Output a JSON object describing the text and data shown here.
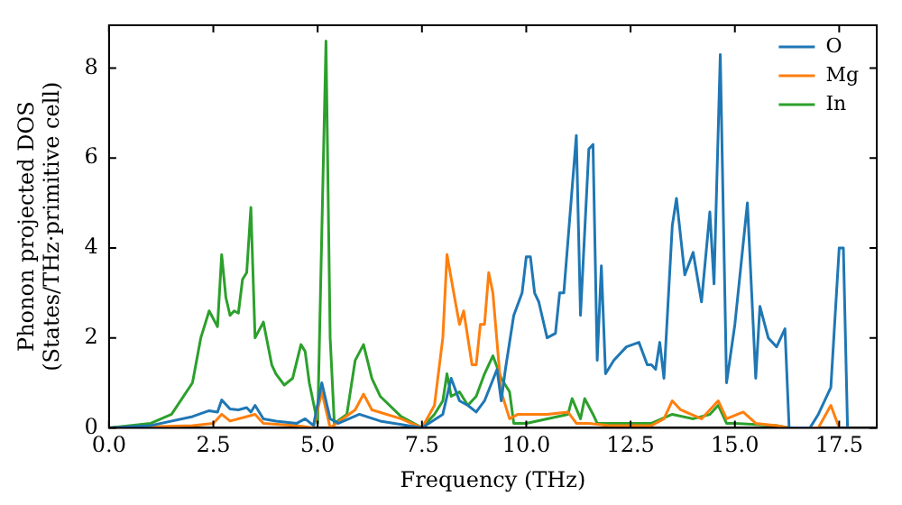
{
  "chart_data": {
    "type": "line",
    "xlabel": "Frequency (THz)",
    "ylabel": "Phonon projected DOS\n(States/THz·primitive cell)",
    "xlim": [
      0,
      18.4
    ],
    "ylim": [
      0,
      8.95
    ],
    "xticks": [
      {
        "value": 0,
        "label": "0.0"
      },
      2.5,
      {
        "value": 5,
        "label": "5.0"
      },
      7.5,
      {
        "value": 10,
        "label": "10.0"
      },
      12.5,
      {
        "value": 15,
        "label": "15.0"
      },
      17.5
    ],
    "yticks": [
      0,
      2,
      4,
      6,
      8
    ],
    "grid": false,
    "legend": "top right",
    "marker": "none",
    "line_style": "solid",
    "series": [
      {
        "name": "O",
        "color": "#1f77b4",
        "x": [
          0,
          1.0,
          2.0,
          2.4,
          2.6,
          2.7,
          2.9,
          3.1,
          3.3,
          3.4,
          3.5,
          3.7,
          4.0,
          4.5,
          4.7,
          4.9,
          5.1,
          5.3,
          5.5,
          6.0,
          6.5,
          7.5,
          8.0,
          8.2,
          8.4,
          8.6,
          8.8,
          9.0,
          9.3,
          9.4,
          9.5,
          9.7,
          9.9,
          10.0,
          10.1,
          10.2,
          10.3,
          10.5,
          10.7,
          10.8,
          10.9,
          11.2,
          11.3,
          11.5,
          11.6,
          11.7,
          11.8,
          11.9,
          12.1,
          12.4,
          12.7,
          12.9,
          13.0,
          13.1,
          13.2,
          13.3,
          13.5,
          13.6,
          13.8,
          14.0,
          14.2,
          14.4,
          14.5,
          14.65,
          14.8,
          15.0,
          15.3,
          15.5,
          15.6,
          15.8,
          16.0,
          16.2,
          16.3,
          16.8,
          17.0,
          17.3,
          17.5,
          17.6,
          17.7
        ],
        "values": [
          0,
          0.05,
          0.25,
          0.38,
          0.35,
          0.62,
          0.42,
          0.4,
          0.45,
          0.35,
          0.5,
          0.2,
          0.15,
          0.1,
          0.2,
          0.05,
          1.0,
          0.2,
          0.1,
          0.3,
          0.15,
          0,
          0.3,
          1.1,
          0.6,
          0.5,
          0.35,
          0.6,
          1.3,
          0.6,
          1.3,
          2.5,
          3.0,
          3.8,
          3.8,
          3.0,
          2.8,
          2.0,
          2.1,
          3.0,
          3.0,
          6.5,
          2.5,
          6.2,
          6.3,
          1.5,
          3.6,
          1.2,
          1.5,
          1.8,
          1.9,
          1.4,
          1.4,
          1.3,
          1.9,
          1.1,
          4.5,
          5.1,
          3.4,
          3.9,
          2.8,
          4.8,
          3.2,
          8.3,
          1.0,
          2.3,
          5.0,
          1.1,
          2.7,
          2.0,
          1.8,
          2.2,
          0,
          0,
          0.3,
          0.9,
          4.0,
          4.0,
          0
        ]
      },
      {
        "name": "Mg",
        "color": "#ff7f0e",
        "x": [
          0,
          2.0,
          2.5,
          2.7,
          2.9,
          3.3,
          3.5,
          3.7,
          4.5,
          4.9,
          5.1,
          5.3,
          5.6,
          5.9,
          6.1,
          6.3,
          7.0,
          7.5,
          7.8,
          8.0,
          8.1,
          8.3,
          8.4,
          8.5,
          8.7,
          8.8,
          8.9,
          9.0,
          9.1,
          9.2,
          9.4,
          9.6,
          9.8,
          10.0,
          10.5,
          11.0,
          11.2,
          11.5,
          12.0,
          13.0,
          13.3,
          13.5,
          13.7,
          14.2,
          14.6,
          14.8,
          15.2,
          15.5,
          16.0,
          16.3,
          17.0,
          17.3,
          17.5
        ],
        "values": [
          0,
          0.05,
          0.1,
          0.3,
          0.15,
          0.25,
          0.3,
          0.1,
          0.05,
          0,
          0.8,
          0,
          0.2,
          0.4,
          0.75,
          0.4,
          0.2,
          0,
          0.5,
          2.0,
          3.85,
          2.8,
          2.3,
          2.6,
          1.4,
          1.4,
          2.3,
          2.3,
          3.45,
          3.0,
          0.8,
          0.2,
          0.3,
          0.3,
          0.3,
          0.35,
          0.1,
          0.1,
          0.05,
          0.05,
          0.2,
          0.6,
          0.4,
          0.2,
          0.6,
          0.2,
          0.35,
          0.1,
          0.05,
          0,
          0,
          0.5,
          0
        ]
      },
      {
        "name": "In",
        "color": "#2ca02c",
        "x": [
          0,
          1.0,
          1.5,
          2.0,
          2.2,
          2.4,
          2.6,
          2.7,
          2.8,
          2.9,
          3.0,
          3.1,
          3.2,
          3.3,
          3.4,
          3.5,
          3.7,
          3.9,
          4.0,
          4.2,
          4.4,
          4.6,
          4.7,
          4.8,
          5.0,
          5.2,
          5.3,
          5.4,
          5.7,
          5.9,
          6.1,
          6.3,
          6.5,
          7.0,
          7.5,
          7.8,
          8.0,
          8.1,
          8.2,
          8.4,
          8.6,
          8.8,
          9.0,
          9.2,
          9.4,
          9.6,
          9.7,
          10.0,
          11.0,
          11.1,
          11.3,
          11.4,
          11.6,
          11.7,
          12.0,
          13.0,
          13.5,
          14.0,
          14.4,
          14.6,
          14.8,
          15.0,
          16.0,
          16.3
        ],
        "values": [
          0,
          0.1,
          0.3,
          1.0,
          2.0,
          2.6,
          2.25,
          3.85,
          2.9,
          2.5,
          2.6,
          2.55,
          3.3,
          3.45,
          4.9,
          2.0,
          2.35,
          1.4,
          1.2,
          0.95,
          1.1,
          1.85,
          1.7,
          1.0,
          0.1,
          8.6,
          2.0,
          0.1,
          0.3,
          1.5,
          1.85,
          1.1,
          0.7,
          0.25,
          0,
          0.3,
          0.6,
          1.2,
          0.7,
          0.8,
          0.5,
          0.7,
          1.2,
          1.6,
          1.1,
          0.8,
          0.1,
          0.1,
          0.3,
          0.65,
          0.2,
          0.65,
          0.3,
          0.1,
          0.1,
          0.1,
          0.3,
          0.2,
          0.3,
          0.5,
          0.1,
          0.1,
          0.05,
          0
        ]
      }
    ]
  }
}
